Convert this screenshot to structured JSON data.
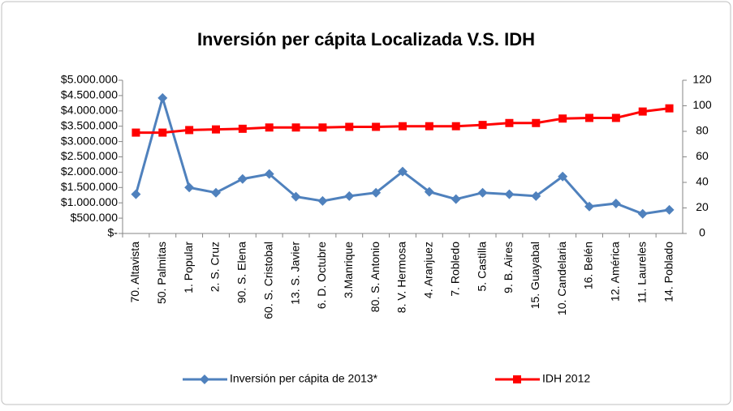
{
  "chart_data": {
    "type": "line",
    "title": "Inversión per cápita Localizada V.S. IDH",
    "categories": [
      "70. Altavista",
      "50. Palmitas",
      "1. Popular",
      "2. S. Cruz",
      "90. S. Elena",
      "60. S. Cristobal",
      "13. S. Javier",
      "6. D. Octubre",
      "3.Manrique",
      "80. S. Antonio",
      "8. V. Hermosa",
      "4. Aranjuez",
      "7. Robledo",
      "5. Castilla",
      "9. B. Aires",
      "15. Guayabal",
      "10. Candelaria",
      "16. Belén",
      "12. América",
      "11. Laureles",
      "14. Poblado"
    ],
    "series": [
      {
        "name": "Inversión per cápita de 2013*",
        "color": "#4f81bd",
        "marker": "diamond",
        "values": [
          1280000,
          4420000,
          1500000,
          1330000,
          1780000,
          1940000,
          1200000,
          1060000,
          1220000,
          1330000,
          2020000,
          1360000,
          1120000,
          1330000,
          1280000,
          1220000,
          1860000,
          880000,
          980000,
          640000,
          770000
        ]
      },
      {
        "name": "IDH 2012",
        "color": "#ff0000",
        "marker": "square",
        "axis": "y2",
        "values": [
          79,
          79,
          81,
          81.5,
          82,
          83,
          83,
          83,
          83.5,
          83.5,
          84,
          84,
          84,
          85,
          86.5,
          86.5,
          90,
          90.5,
          90.5,
          95.5,
          98
        ]
      }
    ],
    "ylim": [
      0,
      5000000
    ],
    "yticks": [
      {
        "value": 0,
        "label": "$-"
      },
      {
        "value": 500000,
        "label": "$500.000"
      },
      {
        "value": 1000000,
        "label": "$1.000.000"
      },
      {
        "value": 1500000,
        "label": "$1.500.000"
      },
      {
        "value": 2000000,
        "label": "$2.000.000"
      },
      {
        "value": 2500000,
        "label": "$2.500.000"
      },
      {
        "value": 3000000,
        "label": "$3.000.000"
      },
      {
        "value": 3500000,
        "label": "$3.500.000"
      },
      {
        "value": 4000000,
        "label": "$4.000.000"
      },
      {
        "value": 4500000,
        "label": "$4.500.000"
      },
      {
        "value": 5000000,
        "label": "$5.000.000"
      }
    ],
    "y2lim": [
      0,
      120
    ],
    "y2ticks": [
      0,
      20,
      40,
      60,
      80,
      100,
      120
    ],
    "legend": "bottom"
  }
}
